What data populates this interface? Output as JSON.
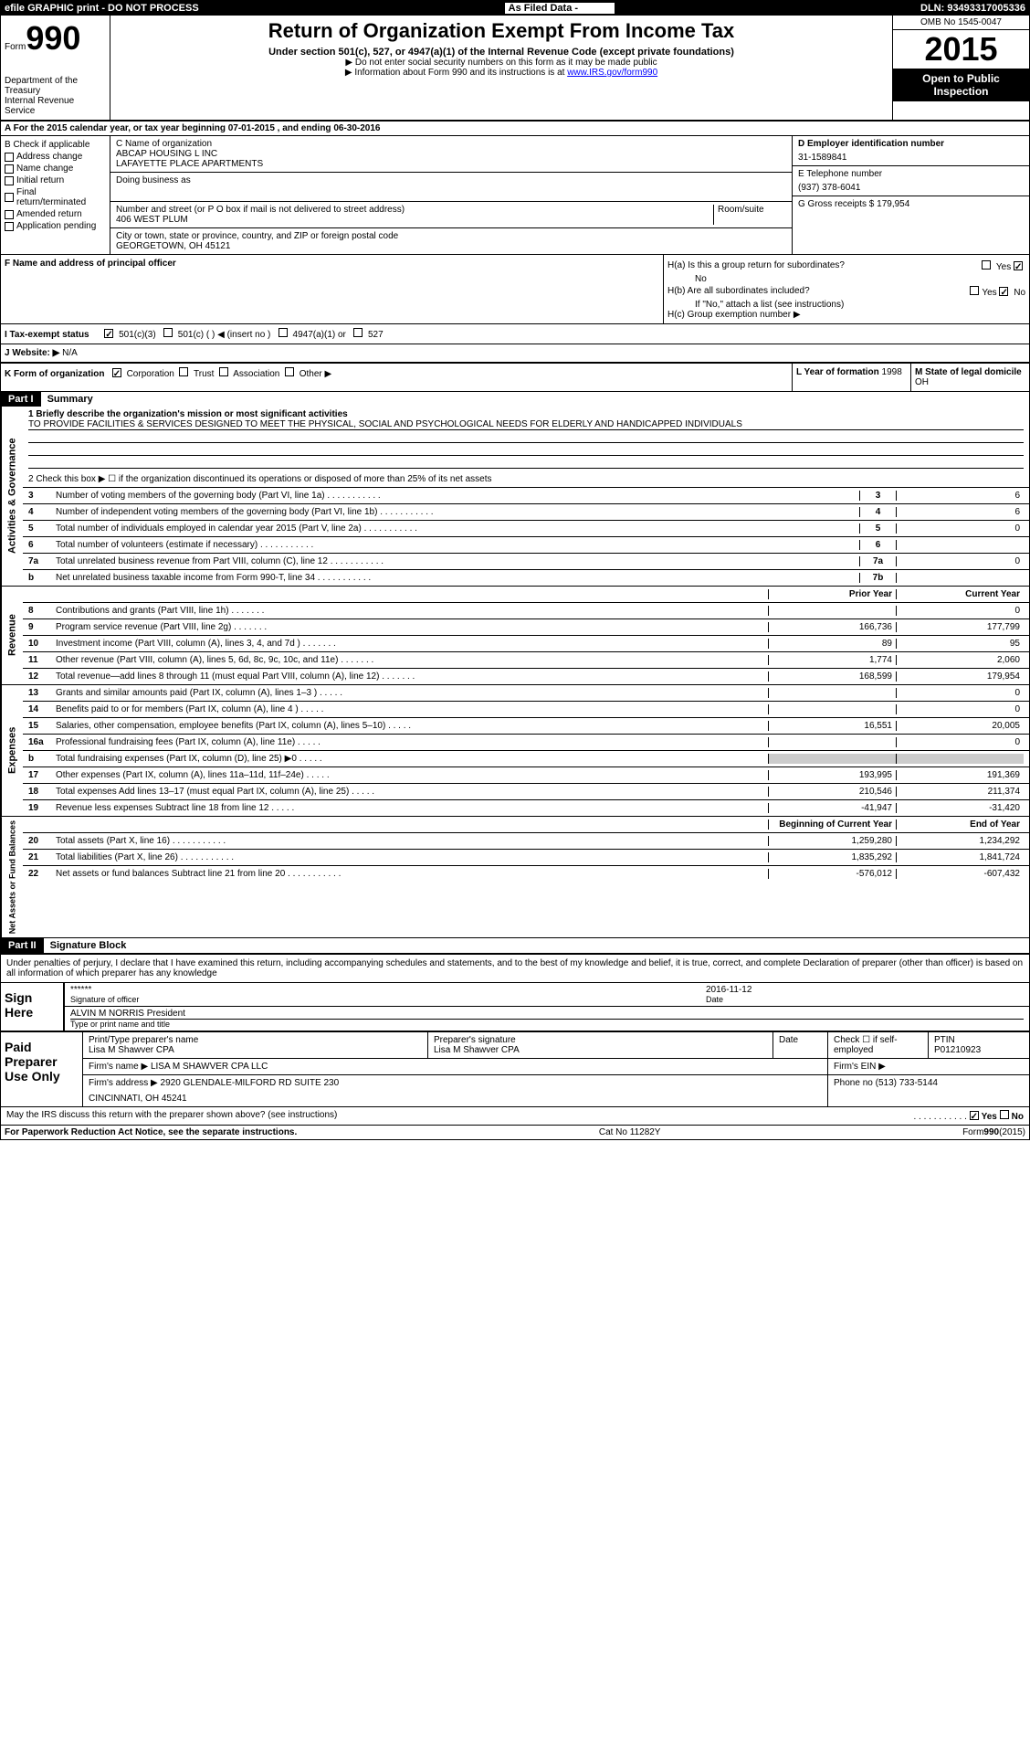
{
  "topbar": {
    "left": "efile GRAPHIC print - DO NOT PROCESS",
    "center": "As Filed Data -",
    "right": "DLN: 93493317005336"
  },
  "header": {
    "form_label": "Form",
    "form_num": "990",
    "dept1": "Department of the Treasury",
    "dept2": "Internal Revenue Service",
    "title": "Return of Organization Exempt From Income Tax",
    "subtitle": "Under section 501(c), 527, or 4947(a)(1) of the Internal Revenue Code (except private foundations)",
    "note1": "▶ Do not enter social security numbers on this form as it may be made public",
    "note2": "▶ Information about Form 990 and its instructions is at ",
    "link": "www.IRS.gov/form990",
    "omb": "OMB No 1545-0047",
    "year": "2015",
    "inspection": "Open to Public Inspection"
  },
  "row_a": "A  For the 2015 calendar year, or tax year beginning 07-01-2015    , and ending 06-30-2016",
  "section_b": {
    "label": "B Check if applicable",
    "items": [
      "Address change",
      "Name change",
      "Initial return",
      "Final return/terminated",
      "Amended return",
      "Application pending"
    ]
  },
  "section_c": {
    "name_label": "C Name of organization",
    "name1": "ABCAP HOUSING L INC",
    "name2": "LAFAYETTE PLACE APARTMENTS",
    "dba_label": "Doing business as",
    "street_label": "Number and street (or P O box if mail is not delivered to street address)",
    "room_label": "Room/suite",
    "street": "406 WEST PLUM",
    "city_label": "City or town, state or province, country, and ZIP or foreign postal code",
    "city": "GEORGETOWN, OH  45121"
  },
  "section_d": {
    "ein_label": "D Employer identification number",
    "ein": "31-1589841",
    "phone_label": "E Telephone number",
    "phone": "(937) 378-6041",
    "receipts_label": "G Gross receipts $",
    "receipts": "179,954"
  },
  "section_f": {
    "label": "F  Name and address of principal officer"
  },
  "section_h": {
    "ha": "H(a)  Is this a group return for subordinates?",
    "ha_answer": "No",
    "hb": "H(b)  Are all subordinates included?",
    "hb_note": "If \"No,\" attach a list  (see instructions)",
    "hc": "H(c)  Group exemption number ▶"
  },
  "section_i": {
    "label": "I  Tax-exempt status",
    "opts": [
      "501(c)(3)",
      "501(c) (  ) ◀ (insert no )",
      "4947(a)(1) or",
      "527"
    ]
  },
  "section_j": {
    "label": "J  Website: ▶",
    "value": "N/A"
  },
  "section_k": {
    "label": "K Form of organization",
    "opts": [
      "Corporation",
      "Trust",
      "Association",
      "Other ▶"
    ]
  },
  "section_l": {
    "label": "L Year of formation",
    "value": "1998"
  },
  "section_m": {
    "label": "M State of legal domicile",
    "value": "OH"
  },
  "part1": {
    "header": "Part I",
    "title": "Summary",
    "line1_label": "1 Briefly describe the organization's mission or most significant activities",
    "mission": "TO PROVIDE FACILITIES & SERVICES DESIGNED TO MEET THE PHYSICAL, SOCIAL AND PSYCHOLOGICAL NEEDS FOR ELDERLY AND HANDICAPPED INDIVIDUALS",
    "line2": "2  Check this box ▶ ☐ if the organization discontinued its operations or disposed of more than 25% of its net assets",
    "activities_label": "Activities & Governance",
    "revenue_label": "Revenue",
    "expenses_label": "Expenses",
    "netassets_label": "Net Assets or Fund Balances",
    "lines_3_7": [
      {
        "num": "3",
        "text": "Number of voting members of the governing body (Part VI, line 1a)",
        "cell": "3",
        "val": "6"
      },
      {
        "num": "4",
        "text": "Number of independent voting members of the governing body (Part VI, line 1b)",
        "cell": "4",
        "val": "6"
      },
      {
        "num": "5",
        "text": "Total number of individuals employed in calendar year 2015 (Part V, line 2a)",
        "cell": "5",
        "val": "0"
      },
      {
        "num": "6",
        "text": "Total number of volunteers (estimate if necessary)",
        "cell": "6",
        "val": ""
      },
      {
        "num": "7a",
        "text": "Total unrelated business revenue from Part VIII, column (C), line 12",
        "cell": "7a",
        "val": "0"
      },
      {
        "num": "b",
        "text": "Net unrelated business taxable income from Form 990-T, line 34",
        "cell": "7b",
        "val": ""
      }
    ],
    "col_prior": "Prior Year",
    "col_current": "Current Year",
    "revenue_lines": [
      {
        "num": "8",
        "text": "Contributions and grants (Part VIII, line 1h)",
        "prior": "",
        "current": "0"
      },
      {
        "num": "9",
        "text": "Program service revenue (Part VIII, line 2g)",
        "prior": "166,736",
        "current": "177,799"
      },
      {
        "num": "10",
        "text": "Investment income (Part VIII, column (A), lines 3, 4, and 7d )",
        "prior": "89",
        "current": "95"
      },
      {
        "num": "11",
        "text": "Other revenue (Part VIII, column (A), lines 5, 6d, 8c, 9c, 10c, and 11e)",
        "prior": "1,774",
        "current": "2,060"
      },
      {
        "num": "12",
        "text": "Total revenue—add lines 8 through 11 (must equal Part VIII, column (A), line 12)",
        "prior": "168,599",
        "current": "179,954"
      }
    ],
    "expense_lines": [
      {
        "num": "13",
        "text": "Grants and similar amounts paid (Part IX, column (A), lines 1–3 )",
        "prior": "",
        "current": "0"
      },
      {
        "num": "14",
        "text": "Benefits paid to or for members (Part IX, column (A), line 4 )",
        "prior": "",
        "current": "0"
      },
      {
        "num": "15",
        "text": "Salaries, other compensation, employee benefits (Part IX, column (A), lines 5–10)",
        "prior": "16,551",
        "current": "20,005"
      },
      {
        "num": "16a",
        "text": "Professional fundraising fees (Part IX, column (A), line 11e)",
        "prior": "",
        "current": "0"
      },
      {
        "num": "b",
        "text": "Total fundraising expenses (Part IX, column (D), line 25) ▶0",
        "prior": "gray",
        "current": "gray"
      },
      {
        "num": "17",
        "text": "Other expenses (Part IX, column (A), lines 11a–11d, 11f–24e)",
        "prior": "193,995",
        "current": "191,369"
      },
      {
        "num": "18",
        "text": "Total expenses  Add lines 13–17 (must equal Part IX, column (A), line 25)",
        "prior": "210,546",
        "current": "211,374"
      },
      {
        "num": "19",
        "text": "Revenue less expenses  Subtract line 18 from line 12",
        "prior": "-41,947",
        "current": "-31,420"
      }
    ],
    "col_begin": "Beginning of Current Year",
    "col_end": "End of Year",
    "asset_lines": [
      {
        "num": "20",
        "text": "Total assets (Part X, line 16)",
        "prior": "1,259,280",
        "current": "1,234,292"
      },
      {
        "num": "21",
        "text": "Total liabilities (Part X, line 26)",
        "prior": "1,835,292",
        "current": "1,841,724"
      },
      {
        "num": "22",
        "text": "Net assets or fund balances  Subtract line 21 from line 20",
        "prior": "-576,012",
        "current": "-607,432"
      }
    ]
  },
  "part2": {
    "header": "Part II",
    "title": "Signature Block",
    "declaration": "Under penalties of perjury, I declare that I have examined this return, including accompanying schedules and statements, and to the best of my knowledge and belief, it is true, correct, and complete  Declaration of preparer (other than officer) is based on all information of which preparer has any knowledge",
    "sign_here": "Sign Here",
    "sig_stars": "******",
    "sig_officer_label": "Signature of officer",
    "sig_date": "2016-11-12",
    "date_label": "Date",
    "name_title": "ALVIN M NORRIS President",
    "name_title_label": "Type or print name and title",
    "paid_label": "Paid Preparer Use Only",
    "prep_name_label": "Print/Type preparer's name",
    "prep_name": "Lisa M Shawver CPA",
    "prep_sig_label": "Preparer's signature",
    "prep_sig": "Lisa M Shawver CPA",
    "check_label": "Check ☐ if self-employed",
    "ptin_label": "PTIN",
    "ptin": "P01210923",
    "firm_name_label": "Firm's name     ▶",
    "firm_name": "LISA M SHAWVER CPA LLC",
    "firm_ein_label": "Firm's EIN ▶",
    "firm_addr_label": "Firm's address ▶",
    "firm_addr": "2920 GLENDALE-MILFORD RD SUITE 230",
    "firm_city": "CINCINNATI, OH  45241",
    "firm_phone_label": "Phone no",
    "firm_phone": "(513) 733-5144",
    "irs_discuss": "May the IRS discuss this return with the preparer shown above? (see instructions)",
    "footer_left": "For Paperwork Reduction Act Notice, see the separate instructions.",
    "footer_center": "Cat No  11282Y",
    "footer_right": "Form 990 (2015)"
  }
}
